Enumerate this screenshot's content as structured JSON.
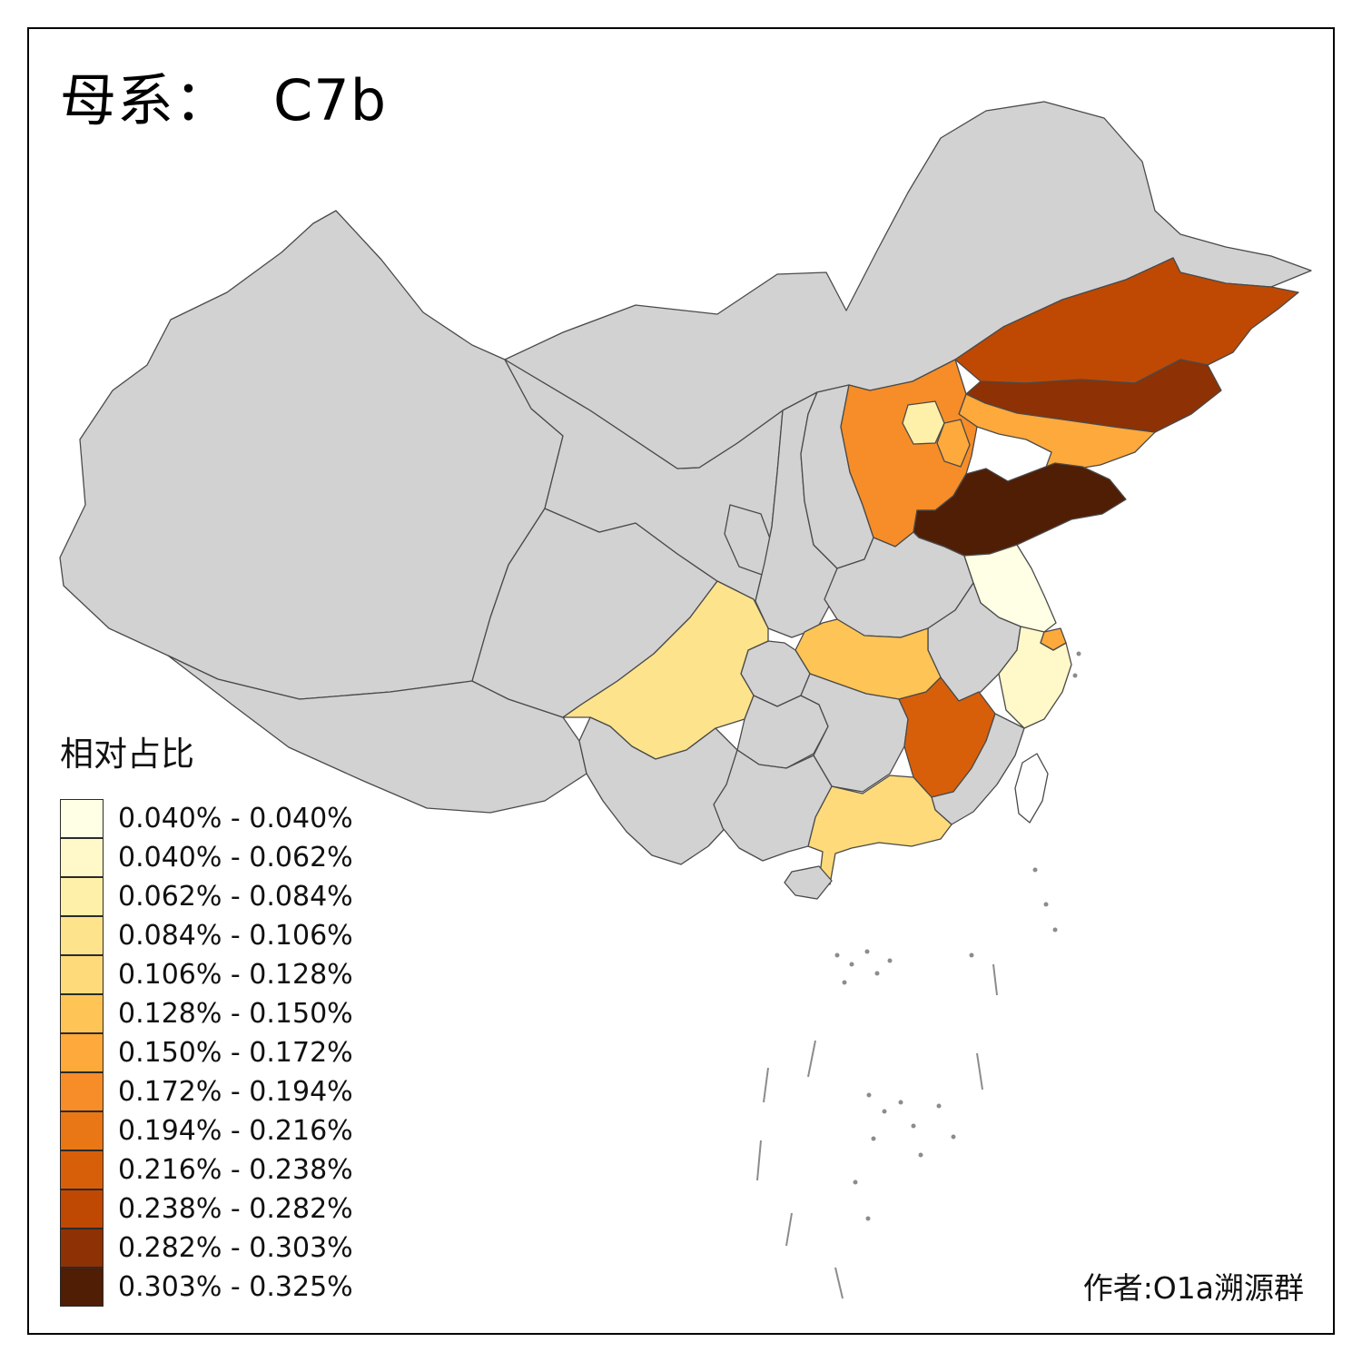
{
  "title": {
    "prefix": "母系：",
    "haplogroup": "C7b"
  },
  "legend": {
    "title": "相对占比",
    "items": [
      {
        "label": "0.040% - 0.040%",
        "color": "#FFFFE5"
      },
      {
        "label": "0.040% - 0.062%",
        "color": "#FFF8C8"
      },
      {
        "label": "0.062% - 0.084%",
        "color": "#FEF0A8"
      },
      {
        "label": "0.084% - 0.106%",
        "color": "#FEE38D"
      },
      {
        "label": "0.106% - 0.128%",
        "color": "#FEDA7A"
      },
      {
        "label": "0.128% - 0.150%",
        "color": "#FEC455"
      },
      {
        "label": "0.150% - 0.172%",
        "color": "#FEA93C"
      },
      {
        "label": "0.172% - 0.194%",
        "color": "#F68D28"
      },
      {
        "label": "0.194% - 0.216%",
        "color": "#E97716"
      },
      {
        "label": "0.216% - 0.238%",
        "color": "#D85F0A"
      },
      {
        "label": "0.238% - 0.282%",
        "color": "#BF4903"
      },
      {
        "label": "0.282% - 0.303%",
        "color": "#8E3104"
      },
      {
        "label": "0.303% - 0.325%",
        "color": "#501D05"
      }
    ]
  },
  "footer": {
    "author": "作者:O1a溯源群"
  },
  "map": {
    "no_data_color": "#D2D2D2",
    "border_color": "#4A4A4A",
    "sea_color": "#FFFFFF",
    "island_marker_color": "#8C8C8C",
    "province_bins": {
      "jiangsu": 0,
      "zhejiang": 1,
      "beijing": 2,
      "sichuan": 3,
      "guangdong": 4,
      "hubei": 5,
      "liaoning": 6,
      "shanghai": 6,
      "tianjin": 6,
      "hebei": 7,
      "jiangxi": 9,
      "heilongjiang": 10,
      "jilin": 11,
      "shandong": 12
    },
    "special_fills": {
      "taiwan": "#FFFFFF"
    }
  }
}
